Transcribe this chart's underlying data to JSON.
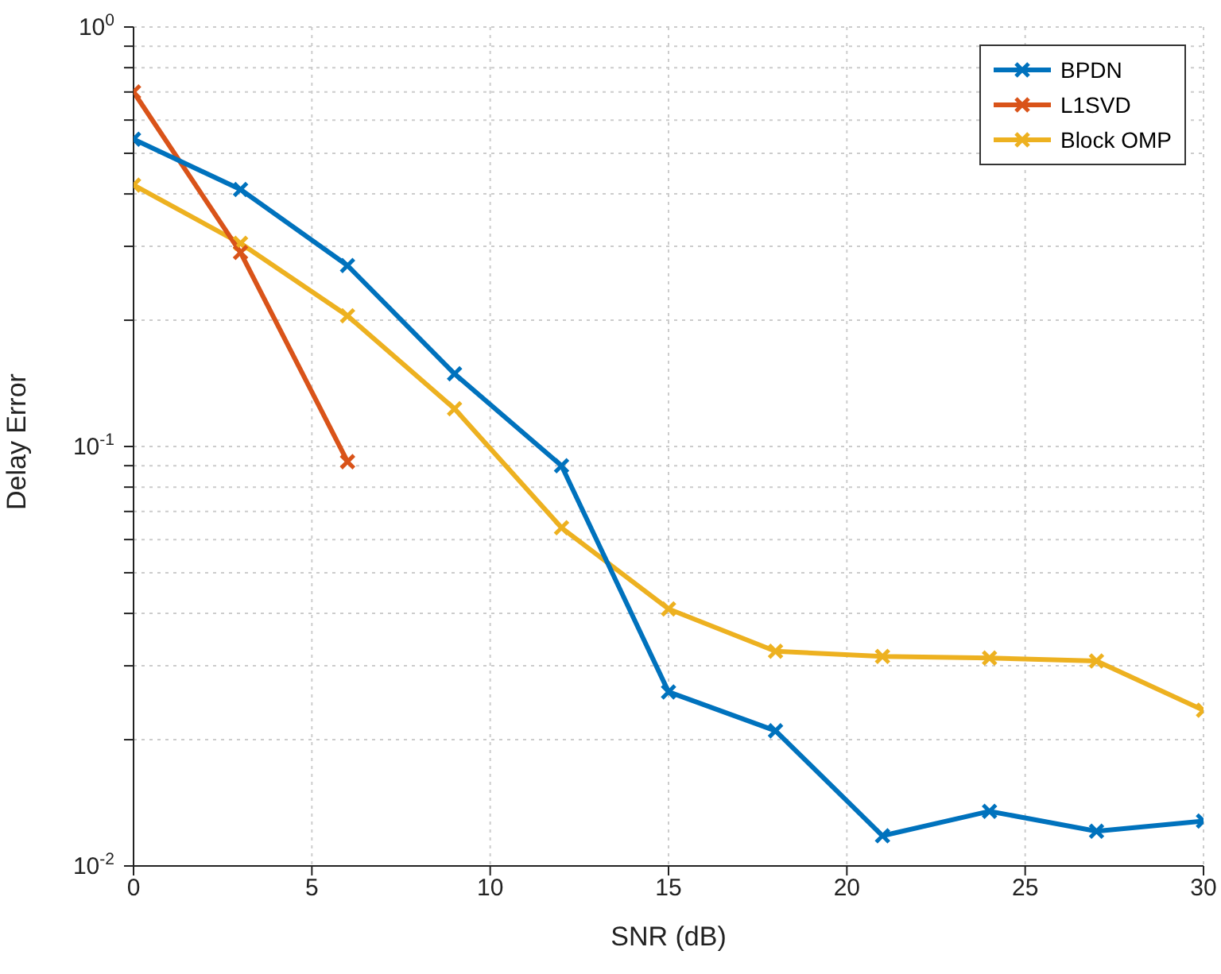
{
  "chart_data": {
    "type": "line",
    "xlabel": "SNR (dB)",
    "ylabel": "Delay Error",
    "x": [
      0,
      3,
      6,
      9,
      12,
      15,
      18,
      21,
      24,
      27,
      30
    ],
    "series": [
      {
        "name": "BPDN",
        "color": "#0072bd",
        "values": [
          0.54,
          0.41,
          0.27,
          0.149,
          0.09,
          0.026,
          0.021,
          0.0118,
          0.0135,
          0.0121,
          0.0128
        ]
      },
      {
        "name": "L1SVD",
        "color": "#d95319",
        "values": [
          0.7,
          0.29,
          0.092,
          null,
          null,
          null,
          null,
          null,
          null,
          null,
          null
        ]
      },
      {
        "name": "Block OMP",
        "color": "#edb120",
        "values": [
          0.42,
          0.305,
          0.205,
          0.123,
          0.064,
          0.041,
          0.0325,
          0.0316,
          0.0313,
          0.0308,
          0.0235
        ]
      }
    ],
    "log": "y",
    "xlim": [
      0,
      30
    ],
    "xticks": [
      0,
      5,
      10,
      15,
      20,
      25,
      30
    ],
    "ylim": [
      0.01,
      1
    ],
    "yticks": [
      {
        "value": 0.01,
        "label": "10$^{-2}$"
      },
      {
        "value": 0.02,
        "label": null
      },
      {
        "value": 0.03,
        "label": null
      },
      {
        "value": 0.04,
        "label": null
      },
      {
        "value": 0.05,
        "label": null
      },
      {
        "value": 0.06,
        "label": null
      },
      {
        "value": 0.07,
        "label": null
      },
      {
        "value": 0.08,
        "label": null
      },
      {
        "value": 0.09,
        "label": null
      },
      {
        "value": 0.1,
        "label": "10$^{-1}$"
      },
      {
        "value": 0.2,
        "label": null
      },
      {
        "value": 0.3,
        "label": null
      },
      {
        "value": 0.4,
        "label": null
      },
      {
        "value": 0.5,
        "label": null
      },
      {
        "value": 0.6,
        "label": null
      },
      {
        "value": 0.7,
        "label": null
      },
      {
        "value": 0.8,
        "label": null
      },
      {
        "value": 0.9,
        "label": null
      },
      {
        "value": 1,
        "label": "10$^{0}$"
      }
    ],
    "grid": true,
    "legend": "top right",
    "marker": "cross",
    "line_style": "solid"
  }
}
